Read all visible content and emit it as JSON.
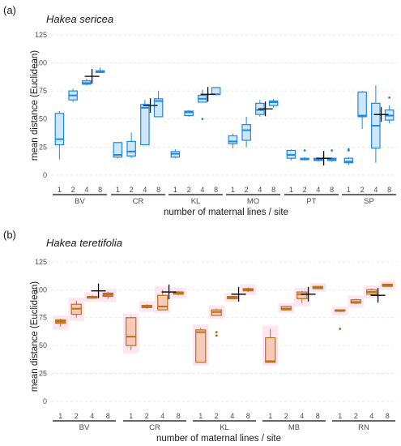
{
  "chart_data": [
    {
      "type": "box",
      "panel_label": "(a)",
      "title": "Hakea sericea",
      "xlabel": "number of maternal lines / site",
      "ylabel": "mean distance (Euclidean)",
      "ylim": [
        -8,
        130
      ],
      "yticks": [
        0,
        25,
        50,
        75,
        100,
        125
      ],
      "grid": true,
      "style": {
        "stroke": "#1e88e5",
        "fill": "#cfe6f8",
        "shade": "none",
        "outlier": "#1e88e5"
      },
      "sites": [
        {
          "name": "BV",
          "groups": [
            {
              "n": "1",
              "min": 14,
              "q1": 27,
              "med": 32,
              "q3": 55,
              "max": 57
            },
            {
              "n": "2",
              "min": 65,
              "q1": 67,
              "med": 71,
              "q3": 75,
              "max": 77
            },
            {
              "n": "4",
              "min": 80,
              "q1": 81,
              "med": 82,
              "q3": 84,
              "max": 86
            },
            {
              "n": "8",
              "min": 91,
              "q1": 91.5,
              "med": 92,
              "q3": 93,
              "max": 96
            }
          ],
          "mean": {
            "pos": 2.4,
            "value": 88
          }
        },
        {
          "name": "CR",
          "groups": [
            {
              "n": "1",
              "min": 15,
              "q1": 16,
              "med": 18,
              "q3": 29,
              "max": 29
            },
            {
              "n": "2",
              "min": 15,
              "q1": 17,
              "med": 21,
              "q3": 30,
              "max": 38
            },
            {
              "n": "4",
              "min": 27,
              "q1": 27,
              "med": 60,
              "q3": 63,
              "max": 67
            },
            {
              "n": "8",
              "min": 52,
              "q1": 52,
              "med": 66,
              "q3": 68,
              "max": 75
            }
          ],
          "mean": {
            "pos": 2.4,
            "value": 62
          }
        },
        {
          "name": "KL",
          "groups": [
            {
              "n": "1",
              "min": 15,
              "q1": 16,
              "med": 19,
              "q3": 21,
              "max": 23
            },
            {
              "n": "2",
              "min": 52,
              "q1": 53,
              "med": 56,
              "q3": 57,
              "max": 58
            },
            {
              "n": "4",
              "min": 65,
              "q1": 65,
              "med": 68,
              "q3": 71,
              "max": 76,
              "outliers": [
                50
              ]
            },
            {
              "n": "8",
              "min": 71,
              "q1": 72,
              "med": 72,
              "q3": 78,
              "max": 78
            }
          ],
          "mean": {
            "pos": 2.4,
            "value": 72
          }
        },
        {
          "name": "MO",
          "groups": [
            {
              "n": "1",
              "min": 24,
              "q1": 28,
              "med": 30,
              "q3": 35,
              "max": 37
            },
            {
              "n": "2",
              "min": 25,
              "q1": 31,
              "med": 40,
              "q3": 45,
              "max": 52
            },
            {
              "n": "4",
              "min": 52,
              "q1": 54,
              "med": 58,
              "q3": 64,
              "max": 67
            },
            {
              "n": "8",
              "min": 60,
              "q1": 62,
              "med": 65,
              "q3": 66,
              "max": 68
            }
          ],
          "mean": {
            "pos": 2.4,
            "value": 59
          }
        },
        {
          "name": "PT",
          "groups": [
            {
              "n": "1",
              "min": 13,
              "q1": 15,
              "med": 18,
              "q3": 22,
              "max": 23
            },
            {
              "n": "2",
              "min": 13,
              "q1": 14,
              "med": 14,
              "q3": 15,
              "max": 16,
              "outliers": [
                22
              ]
            },
            {
              "n": "4",
              "min": 12,
              "q1": 13,
              "med": 14,
              "q3": 15,
              "max": 15
            },
            {
              "n": "8",
              "min": 12,
              "q1": 13,
              "med": 14,
              "q3": 15,
              "max": 16,
              "outliers": [
                22
              ]
            }
          ],
          "mean": {
            "pos": 2.4,
            "value": 15
          }
        },
        {
          "name": "SP",
          "groups": [
            {
              "n": "1",
              "min": 9,
              "q1": 11,
              "med": 12,
              "q3": 15,
              "max": 16,
              "outliers": [
                22,
                23
              ]
            },
            {
              "n": "2",
              "min": 41,
              "q1": 52,
              "med": 53,
              "q3": 74,
              "max": 75
            },
            {
              "n": "4",
              "min": 11,
              "q1": 24,
              "med": 44,
              "q3": 64,
              "max": 80
            },
            {
              "n": "8",
              "min": 46,
              "q1": 49,
              "med": 53,
              "q3": 58,
              "max": 62,
              "outliers": [
                69
              ]
            }
          ],
          "mean": {
            "pos": 2.4,
            "value": 54
          }
        }
      ]
    },
    {
      "type": "box",
      "panel_label": "(b)",
      "title": "Hakea teretifolia",
      "xlabel": "number of maternal lines / site",
      "ylabel": "mean distance (Euclidean)",
      "ylim": [
        -8,
        130
      ],
      "yticks": [
        0,
        25,
        50,
        75,
        100,
        125
      ],
      "grid": true,
      "style": {
        "stroke": "#b8721a",
        "fill": "#f6c9b8",
        "shade": "#fde6f2",
        "outlier": "#9a6a10"
      },
      "sites": [
        {
          "name": "BV",
          "groups": [
            {
              "n": "1",
              "min": 67,
              "q1": 70,
              "med": 72,
              "q3": 73,
              "max": 74,
              "fill": "#e46c3a"
            },
            {
              "n": "2",
              "min": 75,
              "q1": 78,
              "med": 83,
              "q3": 87,
              "max": 90
            },
            {
              "n": "4",
              "min": 92,
              "q1": 92.5,
              "med": 93,
              "q3": 94,
              "max": 95
            },
            {
              "n": "8",
              "min": 92,
              "q1": 94,
              "med": 96,
              "q3": 97,
              "max": 98,
              "fill": "#e46c3a"
            }
          ],
          "mean": {
            "pos": 2.4,
            "value": 99
          }
        },
        {
          "name": "CR",
          "groups": [
            {
              "n": "1",
              "min": 46,
              "q1": 50,
              "med": 58,
              "q3": 75,
              "max": 76
            },
            {
              "n": "2",
              "min": 83,
              "q1": 84,
              "med": 85,
              "q3": 86,
              "max": 87
            },
            {
              "n": "4",
              "min": 82,
              "q1": 82,
              "med": 85,
              "q3": 95,
              "max": 100
            },
            {
              "n": "8",
              "min": 95,
              "q1": 96,
              "med": 97,
              "q3": 98,
              "max": 99
            }
          ],
          "mean": {
            "pos": 2.4,
            "value": 98
          }
        },
        {
          "name": "KL",
          "groups": [
            {
              "n": "1",
              "min": 35,
              "q1": 35,
              "med": 62,
              "q3": 64,
              "max": 66
            },
            {
              "n": "2",
              "min": 77,
              "q1": 77,
              "med": 80,
              "q3": 82,
              "max": 83,
              "outliers": [
                59,
                62
              ]
            },
            {
              "n": "4",
              "min": 92,
              "q1": 92,
              "med": 93,
              "q3": 94,
              "max": 94
            },
            {
              "n": "8",
              "min": 98,
              "q1": 99,
              "med": 100,
              "q3": 101,
              "max": 102
            }
          ],
          "mean": {
            "pos": 2.4,
            "value": 96
          }
        },
        {
          "name": "MB",
          "groups": [
            {
              "n": "1",
              "min": 35,
              "q1": 35,
              "med": 36,
              "q3": 57,
              "max": 65
            },
            {
              "n": "2",
              "min": 82,
              "q1": 82,
              "med": 83,
              "q3": 85,
              "max": 85
            },
            {
              "n": "4",
              "min": 88,
              "q1": 92,
              "med": 96,
              "q3": 98,
              "max": 99
            },
            {
              "n": "8",
              "min": 101,
              "q1": 101,
              "med": 102,
              "q3": 103,
              "max": 103
            }
          ],
          "mean": {
            "pos": 2.4,
            "value": 96
          }
        },
        {
          "name": "RN",
          "groups": [
            {
              "n": "1",
              "min": 80,
              "q1": 81,
              "med": 81,
              "q3": 82,
              "max": 82,
              "outliers": [
                65
              ]
            },
            {
              "n": "2",
              "min": 87,
              "q1": 88,
              "med": 89,
              "q3": 91,
              "max": 92
            },
            {
              "n": "4",
              "min": 95,
              "q1": 96,
              "med": 98,
              "q3": 100,
              "max": 101
            },
            {
              "n": "8",
              "min": 103,
              "q1": 103,
              "med": 104,
              "q3": 105,
              "max": 105
            }
          ],
          "mean": {
            "pos": 2.4,
            "value": 95
          }
        }
      ]
    }
  ]
}
